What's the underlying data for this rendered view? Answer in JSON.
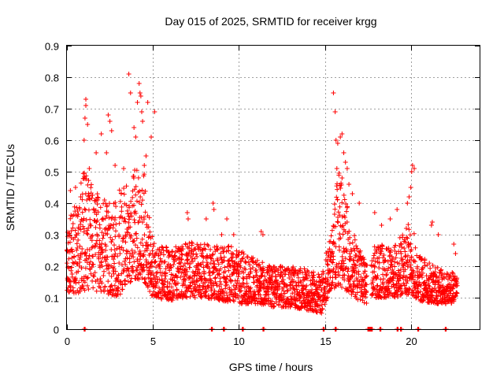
{
  "chart_data": {
    "type": "scatter",
    "title": "Day 015 of 2025, SRMTID for receiver krgg",
    "xlabel": "GPS time / hours",
    "ylabel": "SRMTID / TECUs",
    "xlim": [
      0,
      24
    ],
    "ylim": [
      0,
      0.9
    ],
    "xticks": [
      0,
      5,
      10,
      15,
      20
    ],
    "yticks": [
      0,
      0.1,
      0.2,
      0.3,
      0.4,
      0.5,
      0.6,
      0.7,
      0.8,
      0.9
    ],
    "grid": true,
    "marker": "+",
    "color": "#ff0000",
    "envelope": [
      {
        "x": 0.0,
        "lo": 0.12,
        "hi": 0.33
      },
      {
        "x": 0.5,
        "lo": 0.11,
        "hi": 0.4
      },
      {
        "x": 1.0,
        "lo": 0.12,
        "hi": 0.52
      },
      {
        "x": 1.5,
        "lo": 0.12,
        "hi": 0.45
      },
      {
        "x": 2.0,
        "lo": 0.12,
        "hi": 0.42
      },
      {
        "x": 2.5,
        "lo": 0.11,
        "hi": 0.4
      },
      {
        "x": 3.0,
        "lo": 0.1,
        "hi": 0.44
      },
      {
        "x": 3.5,
        "lo": 0.14,
        "hi": 0.46
      },
      {
        "x": 4.0,
        "lo": 0.16,
        "hi": 0.52
      },
      {
        "x": 4.5,
        "lo": 0.15,
        "hi": 0.5
      },
      {
        "x": 5.0,
        "lo": 0.1,
        "hi": 0.28
      },
      {
        "x": 6.0,
        "lo": 0.09,
        "hi": 0.26
      },
      {
        "x": 7.0,
        "lo": 0.1,
        "hi": 0.28
      },
      {
        "x": 8.0,
        "lo": 0.1,
        "hi": 0.27
      },
      {
        "x": 9.0,
        "lo": 0.09,
        "hi": 0.27
      },
      {
        "x": 10.0,
        "lo": 0.08,
        "hi": 0.26
      },
      {
        "x": 11.0,
        "lo": 0.08,
        "hi": 0.22
      },
      {
        "x": 12.0,
        "lo": 0.07,
        "hi": 0.2
      },
      {
        "x": 13.0,
        "lo": 0.07,
        "hi": 0.2
      },
      {
        "x": 14.0,
        "lo": 0.06,
        "hi": 0.19
      },
      {
        "x": 14.8,
        "lo": 0.05,
        "hi": 0.17
      },
      {
        "x": 15.3,
        "lo": 0.12,
        "hi": 0.3
      },
      {
        "x": 15.8,
        "lo": 0.14,
        "hi": 0.5
      },
      {
        "x": 16.3,
        "lo": 0.12,
        "hi": 0.4
      },
      {
        "x": 17.0,
        "lo": 0.09,
        "hi": 0.26
      },
      {
        "x": 17.5,
        "lo": 0.08,
        "hi": 0.2
      },
      {
        "x": 18.0,
        "lo": 0.1,
        "hi": 0.28
      },
      {
        "x": 19.0,
        "lo": 0.1,
        "hi": 0.26
      },
      {
        "x": 20.0,
        "lo": 0.11,
        "hi": 0.35
      },
      {
        "x": 20.5,
        "lo": 0.09,
        "hi": 0.24
      },
      {
        "x": 21.5,
        "lo": 0.08,
        "hi": 0.2
      },
      {
        "x": 22.0,
        "lo": 0.08,
        "hi": 0.18
      },
      {
        "x": 22.7,
        "lo": 0.08,
        "hi": 0.18
      }
    ],
    "x_end": 22.7,
    "gaps": [
      [
        17.45,
        17.7
      ]
    ],
    "outliers": [
      {
        "x": 0.2,
        "y": 0.44
      },
      {
        "x": 0.5,
        "y": 0.45
      },
      {
        "x": 0.8,
        "y": 0.42
      },
      {
        "x": 1.0,
        "y": 0.6
      },
      {
        "x": 1.05,
        "y": 0.67
      },
      {
        "x": 1.1,
        "y": 0.71
      },
      {
        "x": 1.1,
        "y": 0.73
      },
      {
        "x": 1.2,
        "y": 0.65
      },
      {
        "x": 1.3,
        "y": 0.51
      },
      {
        "x": 1.7,
        "y": 0.56
      },
      {
        "x": 2.0,
        "y": 0.62
      },
      {
        "x": 2.4,
        "y": 0.68
      },
      {
        "x": 2.5,
        "y": 0.66
      },
      {
        "x": 2.6,
        "y": 0.63
      },
      {
        "x": 2.3,
        "y": 0.56
      },
      {
        "x": 2.8,
        "y": 0.52
      },
      {
        "x": 3.3,
        "y": 0.51
      },
      {
        "x": 3.7,
        "y": 0.75
      },
      {
        "x": 3.6,
        "y": 0.81
      },
      {
        "x": 3.9,
        "y": 0.64
      },
      {
        "x": 4.0,
        "y": 0.61
      },
      {
        "x": 4.2,
        "y": 0.78
      },
      {
        "x": 4.25,
        "y": 0.75
      },
      {
        "x": 4.3,
        "y": 0.74
      },
      {
        "x": 4.35,
        "y": 0.69
      },
      {
        "x": 4.4,
        "y": 0.66
      },
      {
        "x": 4.1,
        "y": 0.72
      },
      {
        "x": 4.7,
        "y": 0.72
      },
      {
        "x": 4.9,
        "y": 0.61
      },
      {
        "x": 5.1,
        "y": 0.69
      },
      {
        "x": 4.6,
        "y": 0.55
      },
      {
        "x": 4.5,
        "y": 0.52
      },
      {
        "x": 7.0,
        "y": 0.37
      },
      {
        "x": 7.05,
        "y": 0.35
      },
      {
        "x": 8.1,
        "y": 0.35
      },
      {
        "x": 8.5,
        "y": 0.4
      },
      {
        "x": 8.55,
        "y": 0.38
      },
      {
        "x": 9.0,
        "y": 0.3
      },
      {
        "x": 9.3,
        "y": 0.35
      },
      {
        "x": 9.7,
        "y": 0.3
      },
      {
        "x": 11.3,
        "y": 0.31
      },
      {
        "x": 11.4,
        "y": 0.3
      },
      {
        "x": 15.5,
        "y": 0.75
      },
      {
        "x": 15.6,
        "y": 0.69
      },
      {
        "x": 15.65,
        "y": 0.6
      },
      {
        "x": 15.75,
        "y": 0.59
      },
      {
        "x": 15.9,
        "y": 0.61
      },
      {
        "x": 16.0,
        "y": 0.62
      },
      {
        "x": 16.1,
        "y": 0.56
      },
      {
        "x": 16.2,
        "y": 0.53
      },
      {
        "x": 16.3,
        "y": 0.51
      },
      {
        "x": 15.7,
        "y": 0.51
      },
      {
        "x": 16.0,
        "y": 0.48
      },
      {
        "x": 16.4,
        "y": 0.46
      },
      {
        "x": 16.6,
        "y": 0.43
      },
      {
        "x": 17.0,
        "y": 0.4
      },
      {
        "x": 17.9,
        "y": 0.37
      },
      {
        "x": 18.3,
        "y": 0.33
      },
      {
        "x": 18.8,
        "y": 0.35
      },
      {
        "x": 19.2,
        "y": 0.38
      },
      {
        "x": 19.8,
        "y": 0.4
      },
      {
        "x": 19.9,
        "y": 0.42
      },
      {
        "x": 20.0,
        "y": 0.45
      },
      {
        "x": 20.05,
        "y": 0.5
      },
      {
        "x": 20.1,
        "y": 0.52
      },
      {
        "x": 20.2,
        "y": 0.51
      },
      {
        "x": 21.2,
        "y": 0.33
      },
      {
        "x": 21.25,
        "y": 0.34
      },
      {
        "x": 21.6,
        "y": 0.3
      },
      {
        "x": 22.5,
        "y": 0.27
      },
      {
        "x": 22.6,
        "y": 0.24
      }
    ],
    "zero_points": [
      1.0,
      8.4,
      9.1,
      10.2,
      11.4,
      14.9,
      15.6,
      17.5,
      17.6,
      17.7,
      18.2,
      19.2,
      19.4,
      20.4,
      22.0
    ]
  }
}
